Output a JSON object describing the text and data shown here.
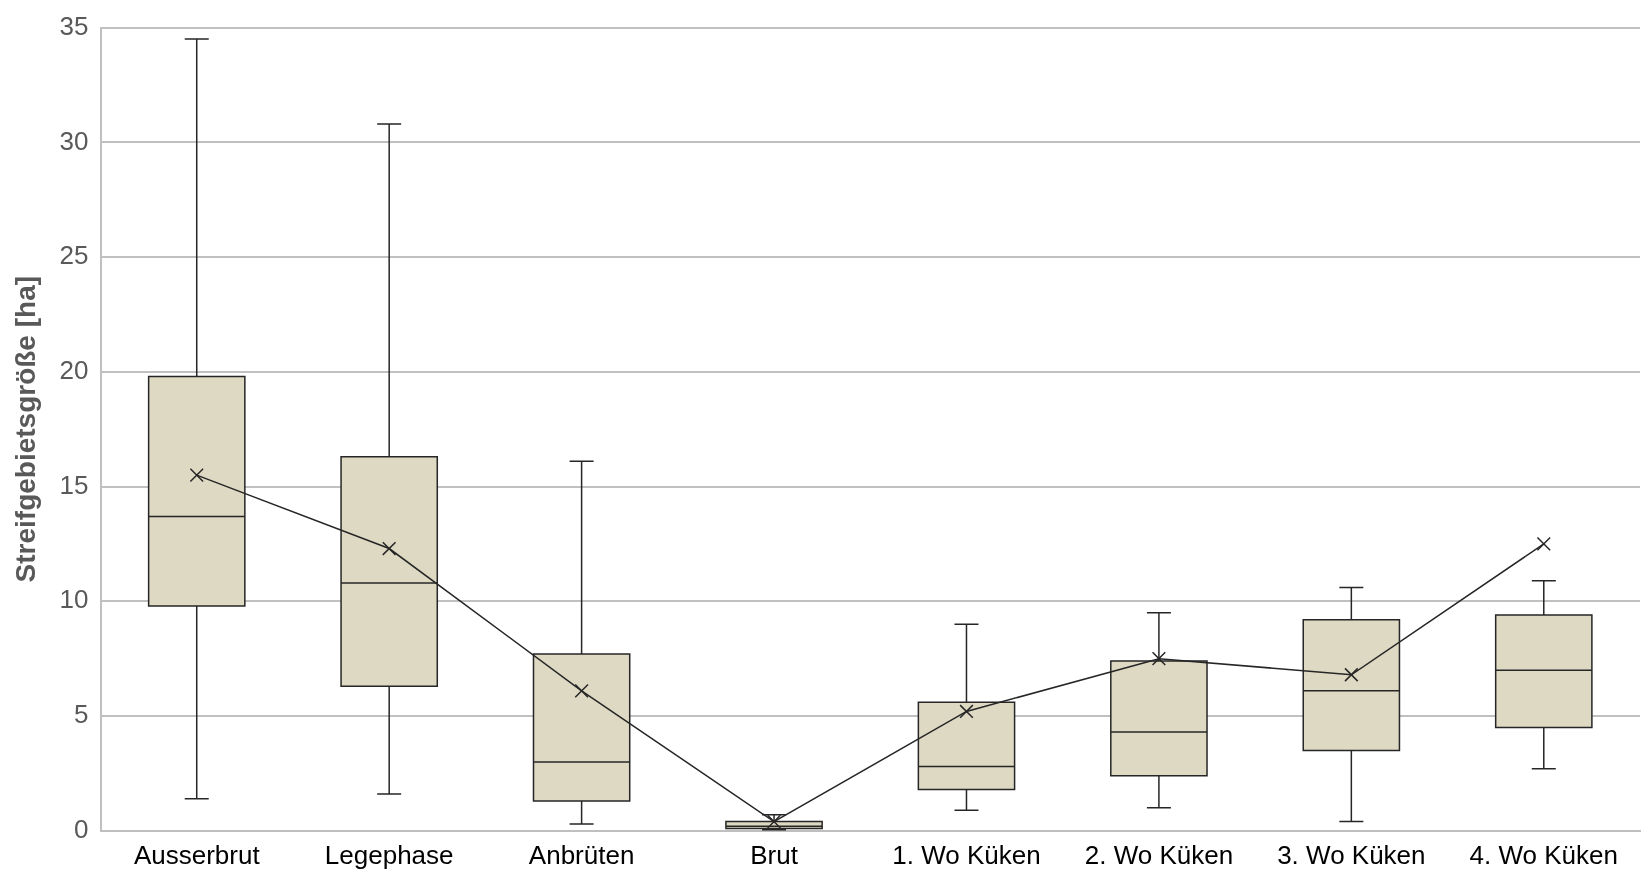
{
  "chart_data": {
    "type": "box",
    "ylabel": "Streifgebietsgröße [ha]",
    "categories": [
      "Ausserbrut",
      "Legephase",
      "Anbrüten",
      "Brut",
      "1. Wo Küken",
      "2. Wo Küken",
      "3. Wo Küken",
      "4. Wo Küken"
    ],
    "series": [
      {
        "type": "box",
        "color": "#ddd9c3",
        "boxes": [
          {
            "low": 1.4,
            "q1": 9.8,
            "median": 13.7,
            "q3": 19.8,
            "high": 34.5
          },
          {
            "low": 1.6,
            "q1": 6.3,
            "median": 10.8,
            "q3": 16.3,
            "high": 30.8
          },
          {
            "low": 0.3,
            "q1": 1.3,
            "median": 3.0,
            "q3": 7.7,
            "high": 16.1
          },
          {
            "low": 0.05,
            "q1": 0.1,
            "median": 0.2,
            "q3": 0.4,
            "high": 0.7
          },
          {
            "low": 0.9,
            "q1": 1.8,
            "median": 2.8,
            "q3": 5.6,
            "high": 9.0
          },
          {
            "low": 1.0,
            "q1": 2.4,
            "median": 4.3,
            "q3": 7.4,
            "high": 9.5
          },
          {
            "low": 0.4,
            "q1": 3.5,
            "median": 6.1,
            "q3": 9.2,
            "high": 10.6
          },
          {
            "low": 2.7,
            "q1": 4.5,
            "median": 7.0,
            "q3": 9.4,
            "high": 10.9
          }
        ]
      },
      {
        "type": "line",
        "color": "#262626",
        "values": [
          15.5,
          12.3,
          6.1,
          0.4,
          5.2,
          7.5,
          6.8,
          12.5
        ]
      }
    ],
    "marker": "cross",
    "ylim": [
      0,
      35
    ],
    "yticks": [
      0,
      5,
      10,
      15,
      20,
      25,
      30,
      35
    ],
    "grid": "y"
  }
}
